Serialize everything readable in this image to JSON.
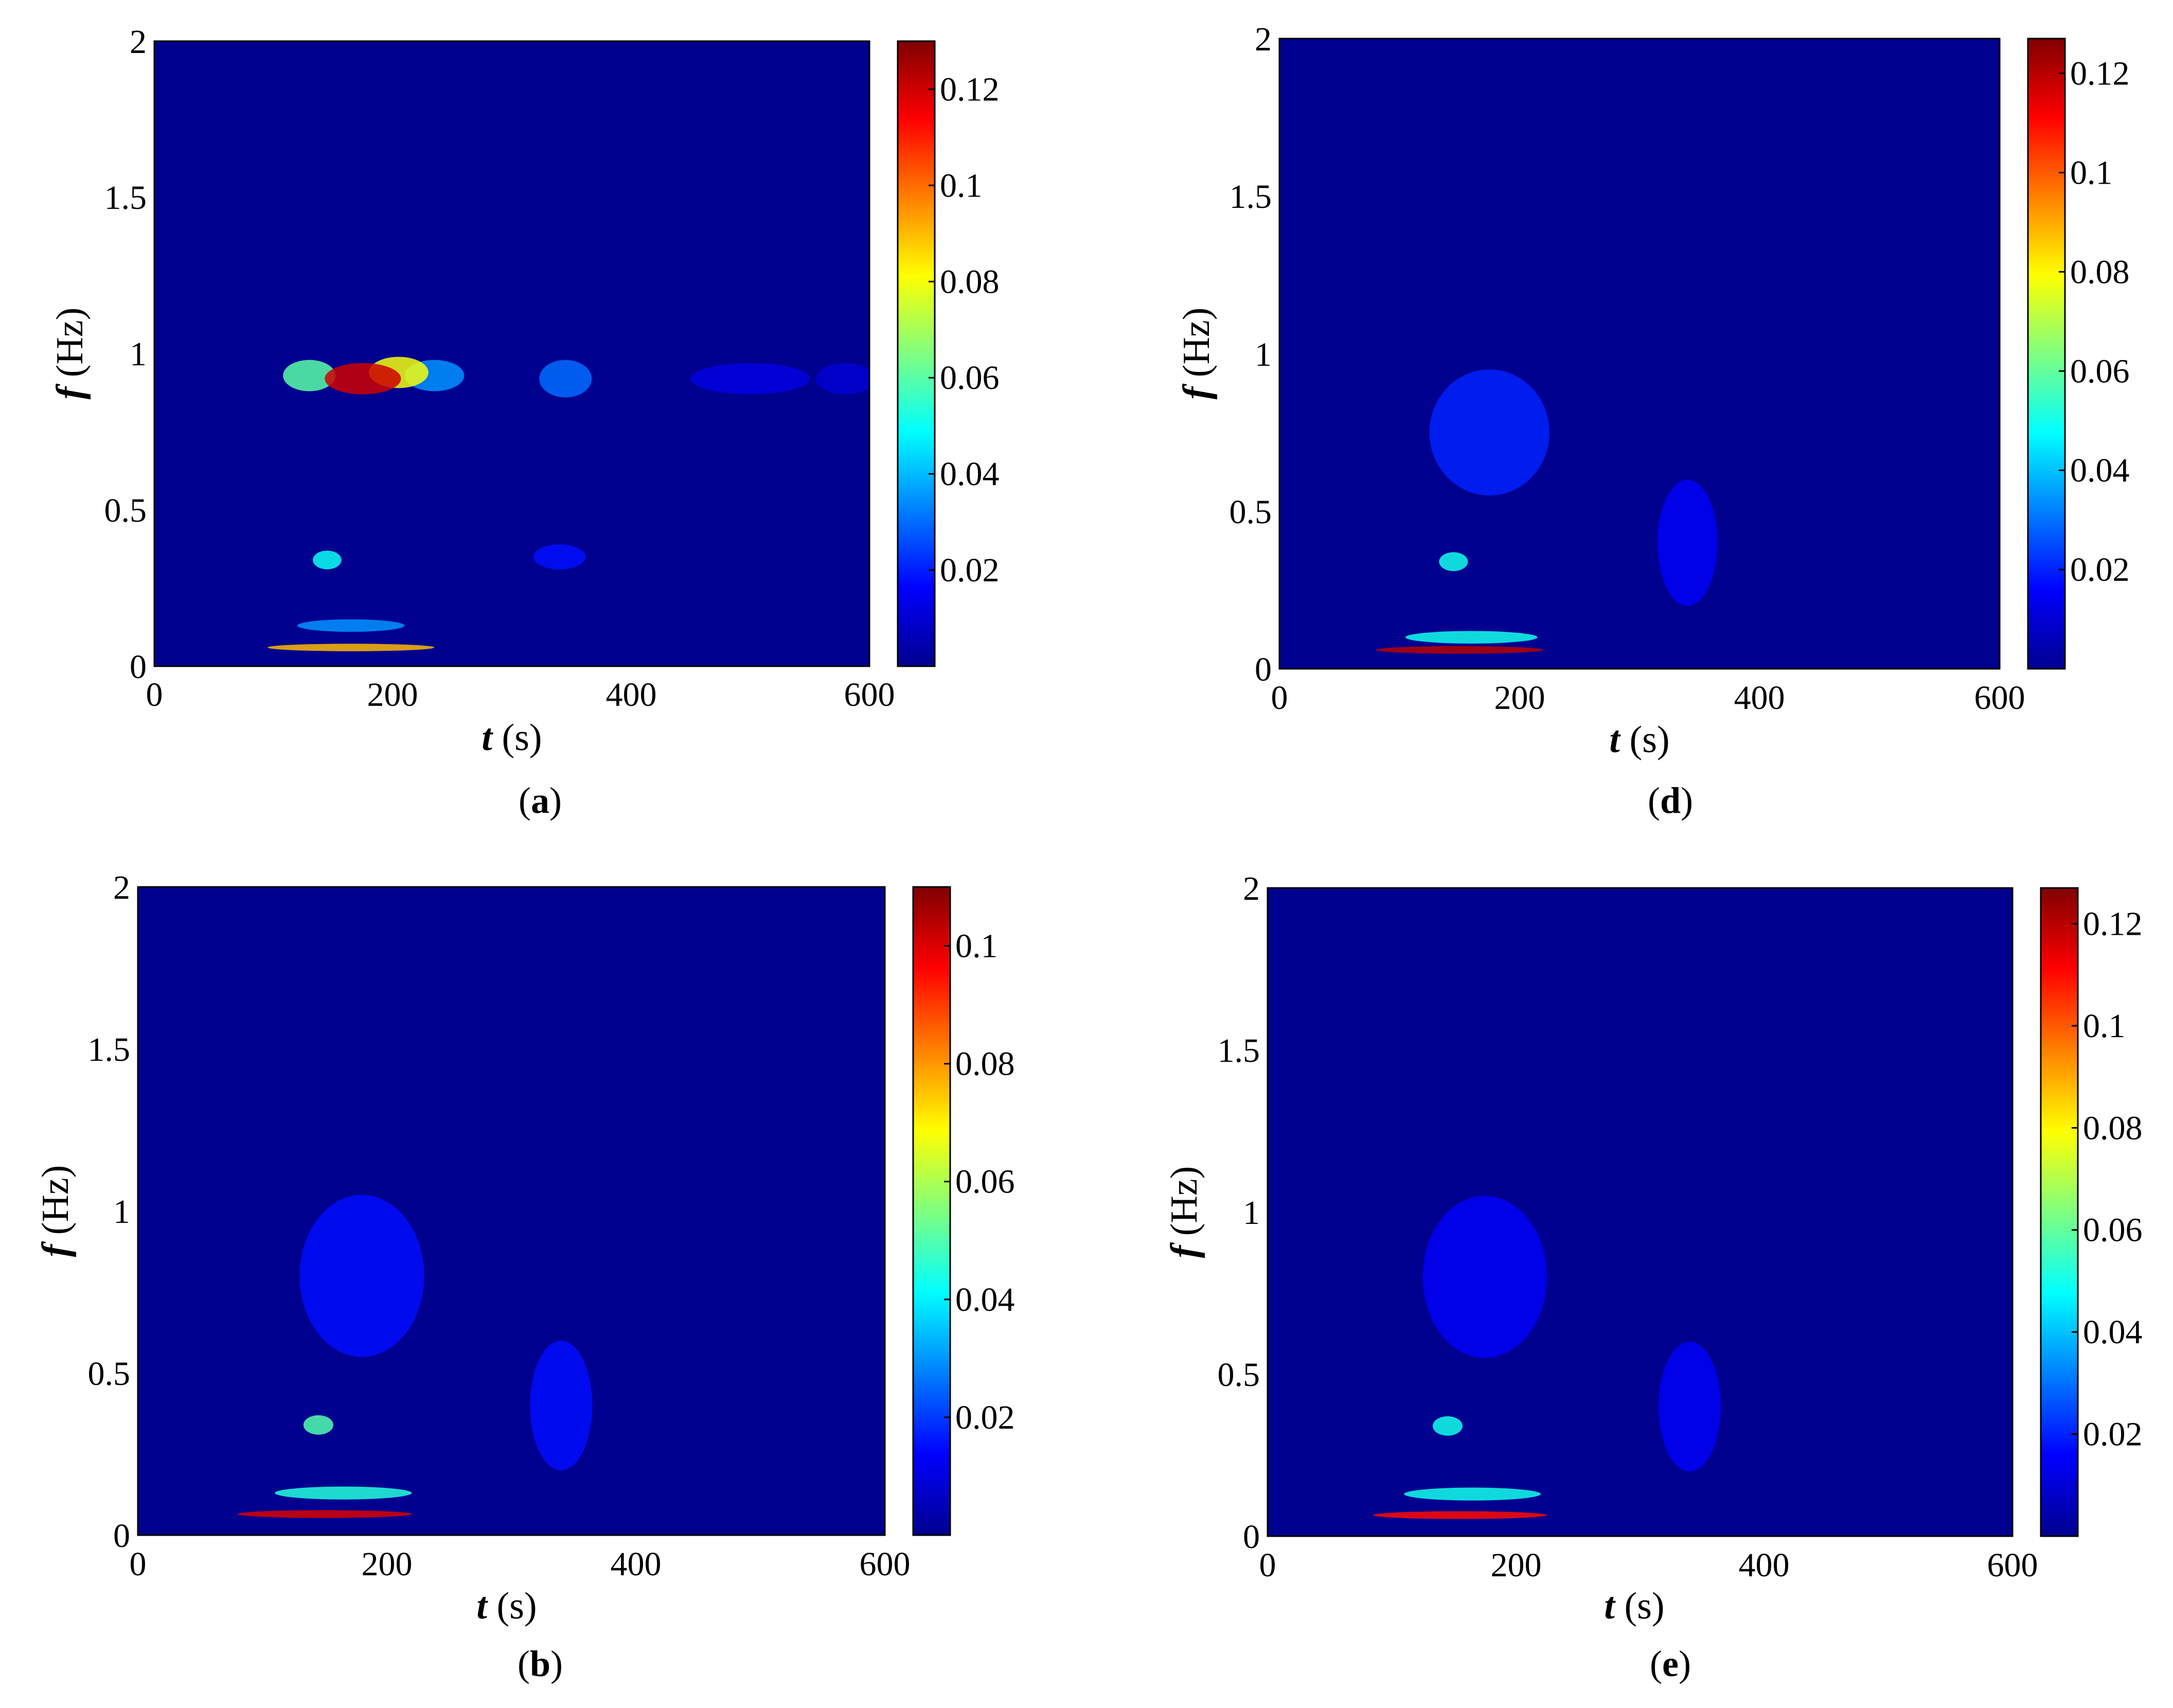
{
  "colormap": {
    "name": "jet",
    "stops": [
      "#00008f",
      "#0000ff",
      "#00ffff",
      "#ffff00",
      "#ff0000",
      "#800000"
    ]
  },
  "chart_data": [
    {
      "panel_label": "a",
      "type": "heatmap",
      "xlabel_symbol": "t",
      "xlabel_unit": "(s)",
      "ylabel_symbol": "f",
      "ylabel_unit": "(Hz)",
      "xlim": [
        0,
        600
      ],
      "ylim": [
        0,
        2
      ],
      "xticks": [
        "0",
        "200",
        "400",
        "600"
      ],
      "yticks": [
        "0",
        "0.5",
        "1",
        "1.5",
        "2"
      ],
      "colorbar": {
        "min": 0,
        "max": 0.13,
        "ticks": [
          "0.02",
          "0.04",
          "0.06",
          "0.08",
          "0.1",
          "0.12"
        ]
      },
      "hotspots": [
        {
          "t": 175,
          "f": 0.92,
          "value": 0.12,
          "dt": 32,
          "df": 0.05
        },
        {
          "t": 205,
          "f": 0.94,
          "value": 0.08,
          "dt": 25,
          "df": 0.05
        },
        {
          "t": 130,
          "f": 0.93,
          "value": 0.06,
          "dt": 22,
          "df": 0.05
        },
        {
          "t": 235,
          "f": 0.93,
          "value": 0.035,
          "dt": 25,
          "df": 0.05
        },
        {
          "t": 145,
          "f": 0.34,
          "value": 0.05,
          "dt": 12,
          "df": 0.03
        },
        {
          "t": 165,
          "f": 0.13,
          "value": 0.035,
          "dt": 45,
          "df": 0.02
        },
        {
          "t": 165,
          "f": 0.06,
          "value": 0.09,
          "dt": 70,
          "df": 0.012
        },
        {
          "t": 345,
          "f": 0.92,
          "value": 0.03,
          "dt": 22,
          "df": 0.06
        },
        {
          "t": 340,
          "f": 0.35,
          "value": 0.018,
          "dt": 22,
          "df": 0.04
        },
        {
          "t": 500,
          "f": 0.92,
          "value": 0.012,
          "dt": 50,
          "df": 0.05
        },
        {
          "t": 580,
          "f": 0.92,
          "value": 0.01,
          "dt": 25,
          "df": 0.05
        }
      ]
    },
    {
      "panel_label": "d",
      "type": "heatmap",
      "xlabel_symbol": "t",
      "xlabel_unit": "(s)",
      "ylabel_symbol": "f",
      "ylabel_unit": "(Hz)",
      "xlim": [
        0,
        600
      ],
      "ylim": [
        0,
        2
      ],
      "xticks": [
        "0",
        "200",
        "400",
        "600"
      ],
      "yticks": [
        "0",
        "0.5",
        "1",
        "1.5",
        "2"
      ],
      "colorbar": {
        "min": 0,
        "max": 0.127,
        "ticks": [
          "0.02",
          "0.04",
          "0.06",
          "0.08",
          "0.1",
          "0.12"
        ]
      },
      "hotspots": [
        {
          "t": 150,
          "f": 0.06,
          "value": 0.12,
          "dt": 70,
          "df": 0.012
        },
        {
          "t": 160,
          "f": 0.1,
          "value": 0.05,
          "dt": 55,
          "df": 0.02
        },
        {
          "t": 145,
          "f": 0.34,
          "value": 0.05,
          "dt": 12,
          "df": 0.03
        },
        {
          "t": 175,
          "f": 0.75,
          "value": 0.02,
          "dt": 50,
          "df": 0.2
        },
        {
          "t": 340,
          "f": 0.4,
          "value": 0.015,
          "dt": 25,
          "df": 0.2
        }
      ]
    },
    {
      "panel_label": "b",
      "type": "heatmap",
      "xlabel_symbol": "t",
      "xlabel_unit": "(s)",
      "ylabel_symbol": "f",
      "ylabel_unit": "(Hz)",
      "xlim": [
        0,
        600
      ],
      "ylim": [
        0,
        2
      ],
      "xticks": [
        "0",
        "200",
        "400",
        "600"
      ],
      "yticks": [
        "0",
        "0.5",
        "1",
        "1.5",
        "2"
      ],
      "colorbar": {
        "min": 0,
        "max": 0.11,
        "ticks": [
          "0.02",
          "0.04",
          "0.06",
          "0.08",
          "0.1"
        ]
      },
      "hotspots": [
        {
          "t": 150,
          "f": 0.065,
          "value": 0.1,
          "dt": 70,
          "df": 0.012
        },
        {
          "t": 165,
          "f": 0.13,
          "value": 0.045,
          "dt": 55,
          "df": 0.02
        },
        {
          "t": 145,
          "f": 0.34,
          "value": 0.05,
          "dt": 12,
          "df": 0.03
        },
        {
          "t": 180,
          "f": 0.8,
          "value": 0.015,
          "dt": 50,
          "df": 0.25
        },
        {
          "t": 340,
          "f": 0.4,
          "value": 0.015,
          "dt": 25,
          "df": 0.2
        }
      ]
    },
    {
      "panel_label": "e",
      "type": "heatmap",
      "xlabel_symbol": "t",
      "xlabel_unit": "(s)",
      "ylabel_symbol": "f",
      "ylabel_unit": "(Hz)",
      "xlim": [
        0,
        600
      ],
      "ylim": [
        0,
        2
      ],
      "xticks": [
        "0",
        "200",
        "400",
        "600"
      ],
      "yticks": [
        "0",
        "0.5",
        "1",
        "1.5",
        "2"
      ],
      "colorbar": {
        "min": 0,
        "max": 0.127,
        "ticks": [
          "0.02",
          "0.04",
          "0.06",
          "0.08",
          "0.1",
          "0.12"
        ]
      },
      "hotspots": [
        {
          "t": 155,
          "f": 0.065,
          "value": 0.11,
          "dt": 70,
          "df": 0.012
        },
        {
          "t": 165,
          "f": 0.13,
          "value": 0.05,
          "dt": 55,
          "df": 0.02
        },
        {
          "t": 145,
          "f": 0.34,
          "value": 0.05,
          "dt": 12,
          "df": 0.03
        },
        {
          "t": 175,
          "f": 0.8,
          "value": 0.015,
          "dt": 50,
          "df": 0.25
        },
        {
          "t": 340,
          "f": 0.4,
          "value": 0.015,
          "dt": 25,
          "df": 0.2
        }
      ]
    }
  ]
}
